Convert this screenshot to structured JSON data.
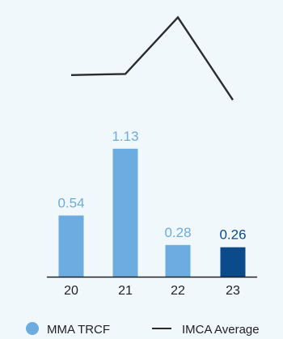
{
  "chart_data": {
    "type": "bar",
    "categories": [
      "20",
      "21",
      "22",
      "23"
    ],
    "series": [
      {
        "name": "MMA TRCF",
        "type": "bar",
        "values": [
          0.54,
          1.13,
          0.28,
          0.26
        ],
        "color": "#6cace0",
        "highlight": {
          "index": 3,
          "color": "#0b4a8b"
        }
      },
      {
        "name": "IMCA Average",
        "type": "line",
        "values": [
          1.78,
          1.79,
          2.29,
          1.56
        ],
        "color": "#2b2b2b"
      }
    ],
    "value_labels": [
      "0.54",
      "1.13",
      "0.28",
      "0.26"
    ],
    "value_label_colors": [
      "#6cace0",
      "#6cace0",
      "#6cace0",
      "#0b4a8b"
    ],
    "ylim": [
      0,
      2.4
    ],
    "grid": false,
    "legend": {
      "position": "bottom",
      "items": [
        {
          "label": "MMA TRCF",
          "marker": "circle",
          "color": "#6cace0"
        },
        {
          "label": "IMCA Average",
          "marker": "line",
          "color": "#2b2b2b"
        }
      ]
    },
    "baseline_color": "#222222",
    "background": "#f1f8fc"
  }
}
